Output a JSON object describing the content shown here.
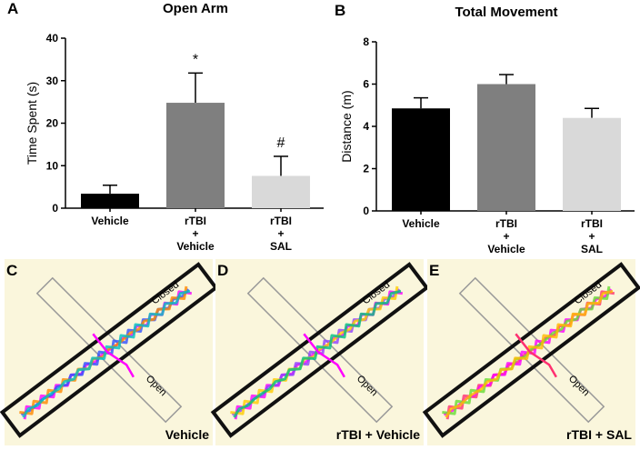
{
  "chart_data": [
    {
      "type": "bar",
      "panel": "A",
      "title": "Open Arm",
      "y_label": "Time Spent (s)",
      "categories": [
        "Vehicle",
        "rTBI + Vehicle",
        "rTBI + SAL"
      ],
      "values": [
        3.4,
        24.8,
        7.6
      ],
      "errors": [
        2.0,
        7.0,
        4.6
      ],
      "colors": [
        "#000000",
        "#7f7f7f",
        "#d9d9d9"
      ],
      "annotations": [
        null,
        "*",
        "#"
      ],
      "ylim": [
        0,
        40
      ],
      "yticks": [
        0,
        10,
        20,
        30,
        40
      ],
      "grid": false
    },
    {
      "type": "bar",
      "panel": "B",
      "title": "Total Movement",
      "y_label": "Distance (m)",
      "categories": [
        "Vehicle",
        "rTBI + Vehicle",
        "rTBI + SAL"
      ],
      "values": [
        4.85,
        6.0,
        4.4
      ],
      "errors": [
        0.5,
        0.45,
        0.45
      ],
      "colors": [
        "#000000",
        "#7f7f7f",
        "#d9d9d9"
      ],
      "ylim": [
        0,
        8
      ],
      "yticks": [
        0,
        2,
        4,
        6,
        8
      ],
      "grid": false
    }
  ],
  "maze_panels": [
    {
      "panel": "C",
      "label": "Vehicle",
      "closed": "Closed",
      "open": "Open"
    },
    {
      "panel": "D",
      "label": "rTBI + Vehicle",
      "closed": "Closed",
      "open": "Open"
    },
    {
      "panel": "E",
      "label": "rTBI + SAL",
      "closed": "Closed",
      "open": "Open"
    }
  ]
}
